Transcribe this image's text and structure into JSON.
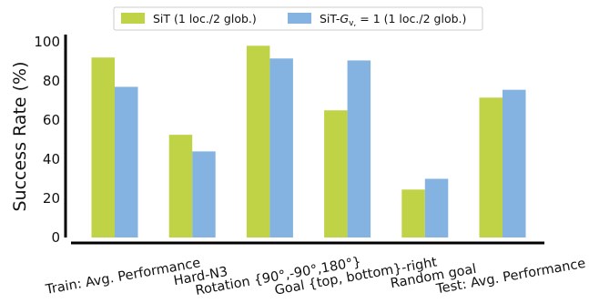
{
  "chart_data": {
    "type": "bar",
    "ylabel": "Success Rate (%)",
    "xlabel": "",
    "ylim": [
      0,
      100
    ],
    "yticks": [
      0,
      20,
      40,
      60,
      80,
      100
    ],
    "grid": false,
    "legend_position": "top-center",
    "categories": [
      "Train: Avg. Performance",
      "Hard-N3",
      "Rotation {90°,-90°,180°}",
      "Goal {top, bottom}-right",
      "Random goal",
      "Test: Avg. Performance"
    ],
    "series": [
      {
        "name": "SiT (1 loc./2 glob.)",
        "color": "#c0d246",
        "values": [
          92,
          52.5,
          98,
          65,
          24.5,
          71.5
        ]
      },
      {
        "name_prefix": "SiT-",
        "name_symbol": "G",
        "name_subscript": "v,",
        "name_suffix": " = 1 (1 loc./2 glob.)",
        "color": "#84b2e1",
        "values": [
          77,
          44,
          91.5,
          90.5,
          30,
          75.5
        ]
      }
    ]
  }
}
